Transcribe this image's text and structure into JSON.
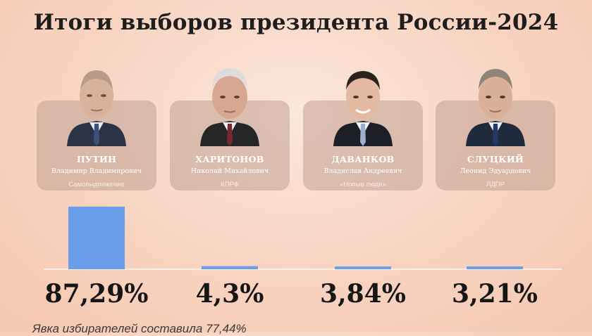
{
  "title": "Итоги выборов президента России-2024",
  "candidates": [
    {
      "surname": "ПУТИН",
      "patronymic": "Владимир Владимирович",
      "party": "Самовыдвижение"
    },
    {
      "surname": "ХАРИТОНОВ",
      "patronymic": "Николай Михайлович",
      "party": "КПРФ"
    },
    {
      "surname": "ДАВАНКОВ",
      "patronymic": "Владислав Андреевич",
      "party": "«Новые люди»"
    },
    {
      "surname": "СЛУЦКИЙ",
      "patronymic": "Леонид Эдуардович",
      "party": "ЛДПР"
    }
  ],
  "chart_data": {
    "type": "bar",
    "title": "Итоги выборов президента России-2024",
    "categories": [
      "ПУТИН",
      "ХАРИТОНОВ",
      "ДАВАНКОВ",
      "СЛУЦКИЙ"
    ],
    "values": [
      87.29,
      4.3,
      3.84,
      3.21
    ],
    "value_labels": [
      "87,29%",
      "4,3%",
      "3,84%",
      "3,21%"
    ],
    "ylim": [
      0,
      100
    ],
    "bar_color": "#6a9eea",
    "grid": false,
    "legend": "none"
  },
  "footnote": "Явка избирателей составила 77,44%"
}
